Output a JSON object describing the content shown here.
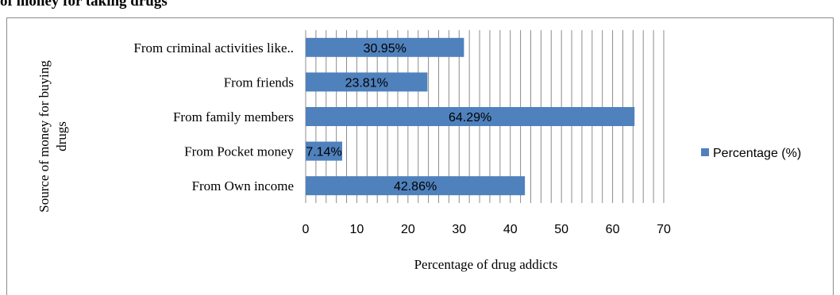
{
  "page": {
    "title_fragment": "of money for taking drugs"
  },
  "chart_data": {
    "type": "bar",
    "orientation": "horizontal",
    "categories": [
      "From criminal activities like..",
      "From friends",
      "From family members",
      "From Pocket money",
      "From Own income"
    ],
    "series": [
      {
        "name": "Percentage (%)",
        "values": [
          30.95,
          23.81,
          64.29,
          7.14,
          42.86
        ],
        "labels": [
          "30.95%",
          "23.81%",
          "64.29%",
          "7.14%",
          "42.86%"
        ],
        "color": "#4f81bd"
      }
    ],
    "xlabel": "Percentage of drug addicts",
    "ylabel": "Source of money for buying drugs",
    "xlim": [
      0,
      70
    ],
    "xticks": [
      0,
      10,
      20,
      30,
      40,
      50,
      60,
      70
    ],
    "grid": "vertical",
    "legend_position": "right"
  }
}
